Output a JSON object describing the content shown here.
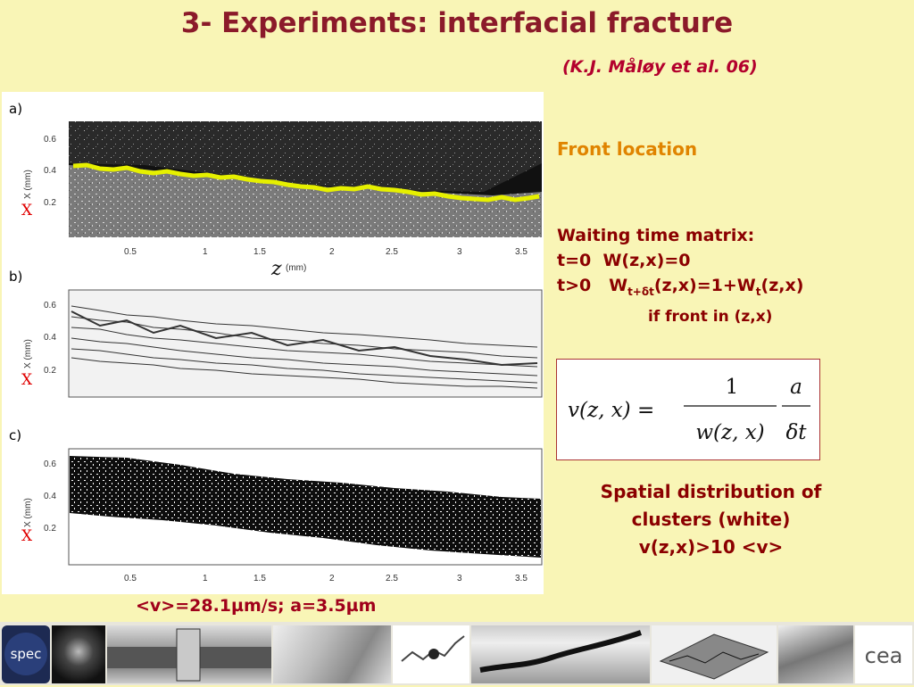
{
  "title": "3- Experiments: interfacial fracture",
  "citation": "(K.J. Måløy et al. 06)",
  "figure": {
    "panel_a": "a)",
    "panel_b": "b)",
    "panel_c": "c)",
    "y_axis_name": "X (mm)",
    "x_axis_name": "(mm)",
    "z_symbol": "z",
    "x_symbol": "X",
    "y_ticks": [
      "0.6",
      "0.4",
      "0.2"
    ],
    "x_ticks": [
      "0.5",
      "1",
      "1.5",
      "2",
      "2.5",
      "3",
      "3.5"
    ]
  },
  "front_location": "Front  location",
  "waiting": {
    "heading": "Waiting time matrix:",
    "line1_a": "t=0",
    "line1_b": "W(z,x)=0",
    "line2_a": "t>0",
    "line2_W": "W",
    "line2_sub1": "t+δt",
    "line2_mid": "(z,x)=1+W",
    "line2_sub2": "t",
    "line2_end": "(z,x)",
    "line3": "if front in (z,x)"
  },
  "formula": {
    "lhs": "v(z, x) =",
    "num1": "1",
    "den1": "w(z, x)",
    "num2": "a",
    "den2": "δt"
  },
  "spatial": {
    "line1": "Spatial distribution of",
    "line2": "clusters (white)",
    "line3": "v(z,x)>10 <v>"
  },
  "caption": "<v>=28.1µm/s; a=3.5µm",
  "logos": {
    "spec": "spec",
    "cea": "cea"
  }
}
